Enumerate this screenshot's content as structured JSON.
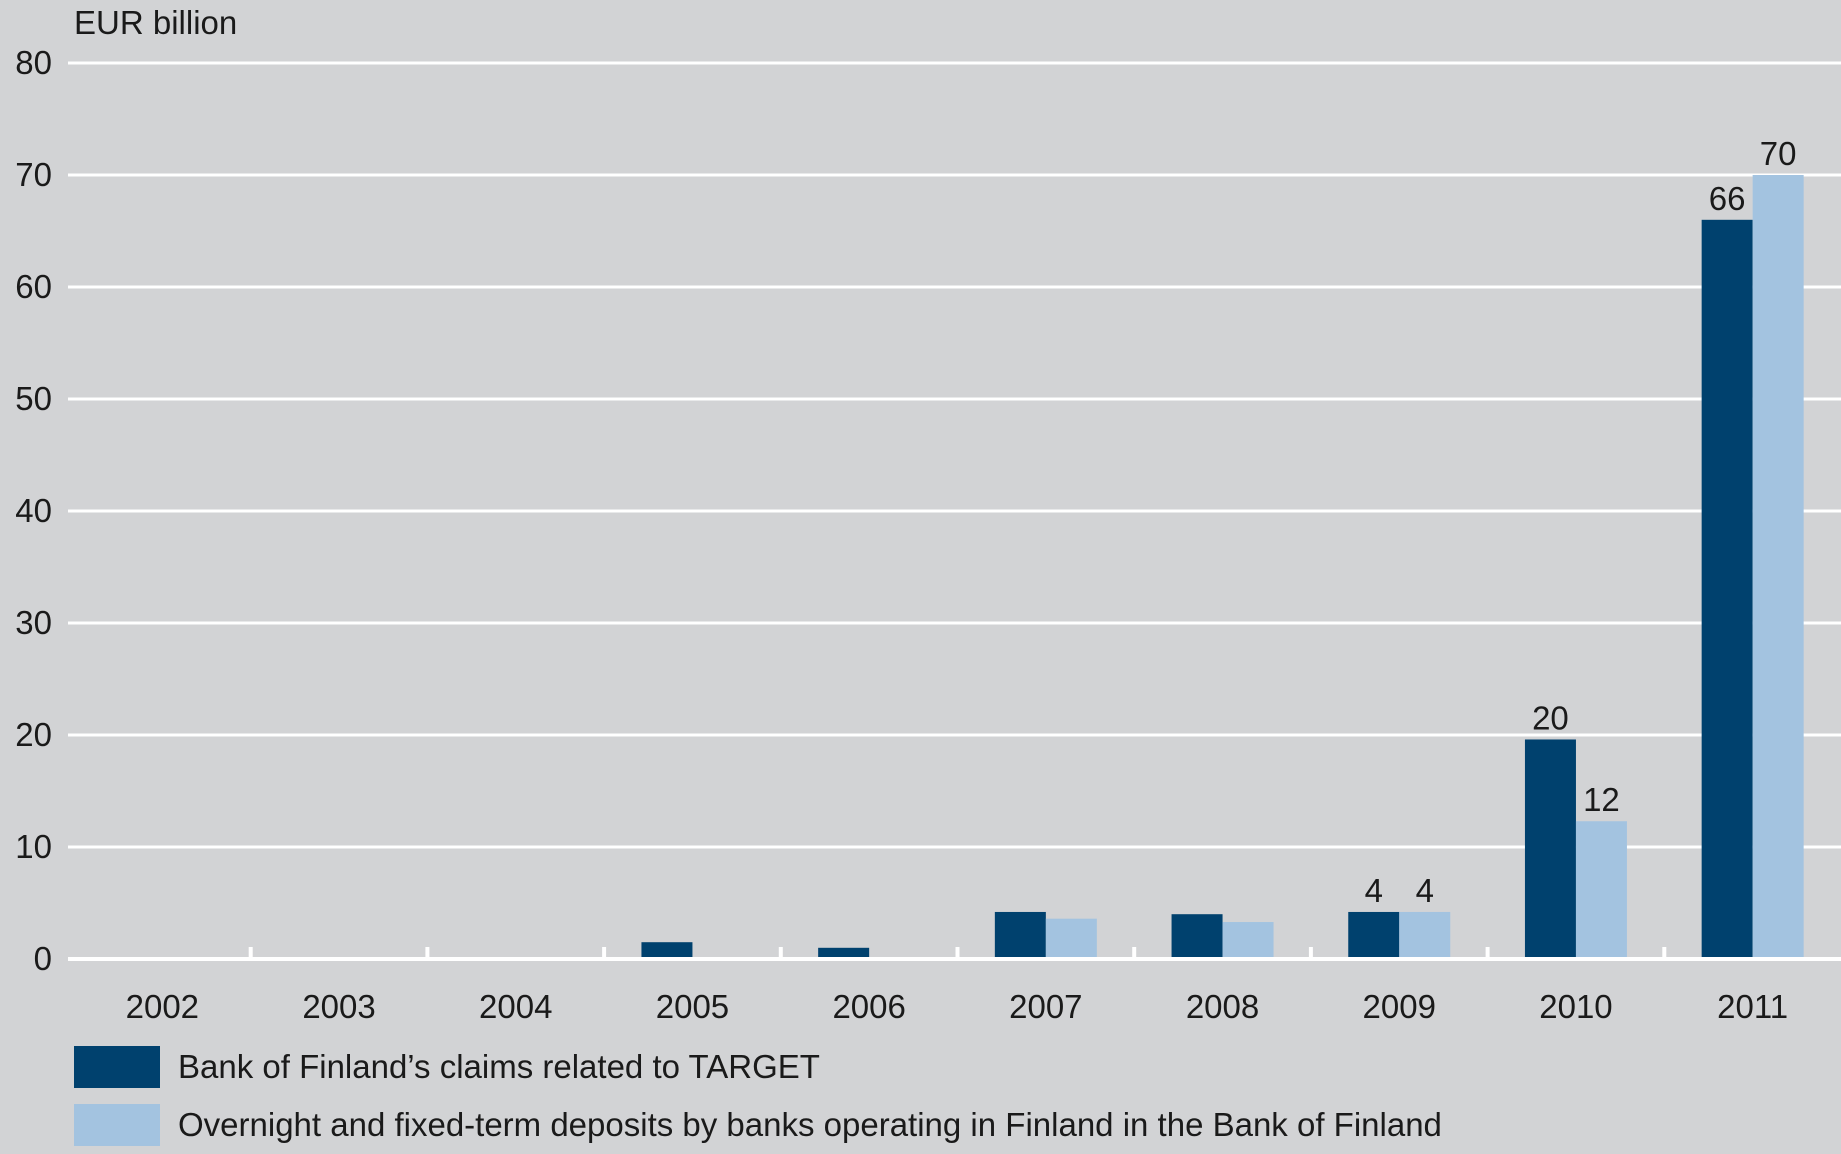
{
  "chart_data": {
    "type": "bar",
    "ylabel": "EUR billion",
    "ylim": [
      0,
      80
    ],
    "yticks": [
      0,
      10,
      20,
      30,
      40,
      50,
      60,
      70,
      80
    ],
    "categories": [
      "2002",
      "2003",
      "2004",
      "2005",
      "2006",
      "2007",
      "2008",
      "2009",
      "2010",
      "2011"
    ],
    "series": [
      {
        "name": "Bank of Finland’s claims related to TARGET",
        "color": "#00416e",
        "values": [
          0,
          0,
          0,
          1.5,
          1.0,
          4.2,
          4.0,
          4.2,
          19.6,
          66
        ],
        "data_labels": [
          "",
          "",
          "",
          "",
          "",
          "",
          "",
          "4",
          "20",
          "66"
        ]
      },
      {
        "name": "Overnight and fixed-term deposits by banks operating in Finland in the Bank of Finland",
        "color": "#a3c3e0",
        "values": [
          0,
          0,
          0,
          0,
          0,
          3.6,
          3.3,
          4.2,
          12.3,
          70
        ],
        "data_labels": [
          "",
          "",
          "",
          "",
          "",
          "",
          "",
          "4",
          "12",
          "70"
        ]
      }
    ],
    "grid": true,
    "legend_position": "bottom-left"
  }
}
